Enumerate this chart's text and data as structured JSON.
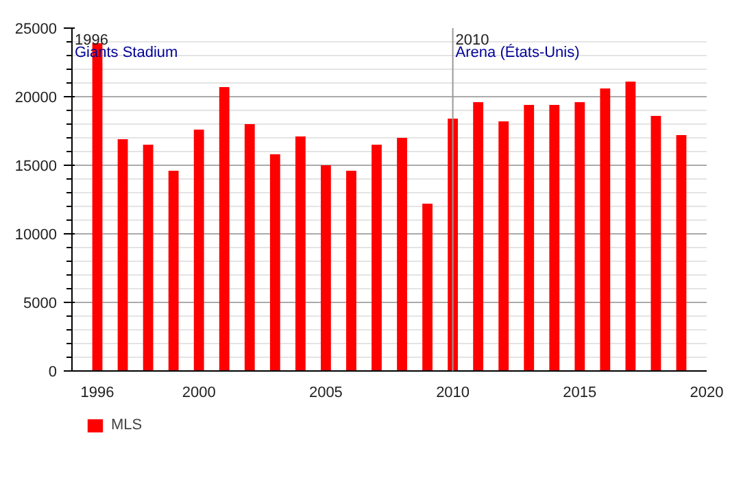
{
  "chart_data": {
    "type": "bar",
    "x": [
      1996,
      1997,
      1998,
      1999,
      2000,
      2001,
      2002,
      2003,
      2004,
      2005,
      2006,
      2007,
      2008,
      2009,
      2010,
      2011,
      2012,
      2013,
      2014,
      2015,
      2016,
      2017,
      2018,
      2019
    ],
    "series": [
      {
        "name": "MLS",
        "color": "#ff0000",
        "values": [
          23900,
          16900,
          16500,
          14600,
          17600,
          20700,
          18000,
          15800,
          17100,
          15000,
          14600,
          16500,
          17000,
          12200,
          18400,
          19600,
          18200,
          19400,
          19400,
          19600,
          20600,
          21100,
          18600,
          17200
        ]
      }
    ],
    "xlim": [
      1995,
      2020
    ],
    "xticks": [
      1996,
      2000,
      2005,
      2010,
      2015,
      2020
    ],
    "ylim": [
      0,
      25000
    ],
    "yticks": [
      0,
      5000,
      10000,
      15000,
      20000,
      25000
    ],
    "grid": "y",
    "legend": "bottom left",
    "ref_lines": [
      {
        "axis": "x",
        "value": 2010,
        "color": "#999999"
      }
    ],
    "annotations": [
      "1996",
      "Giants Stadium",
      "2010",
      "Arena (États-Unis)"
    ]
  }
}
